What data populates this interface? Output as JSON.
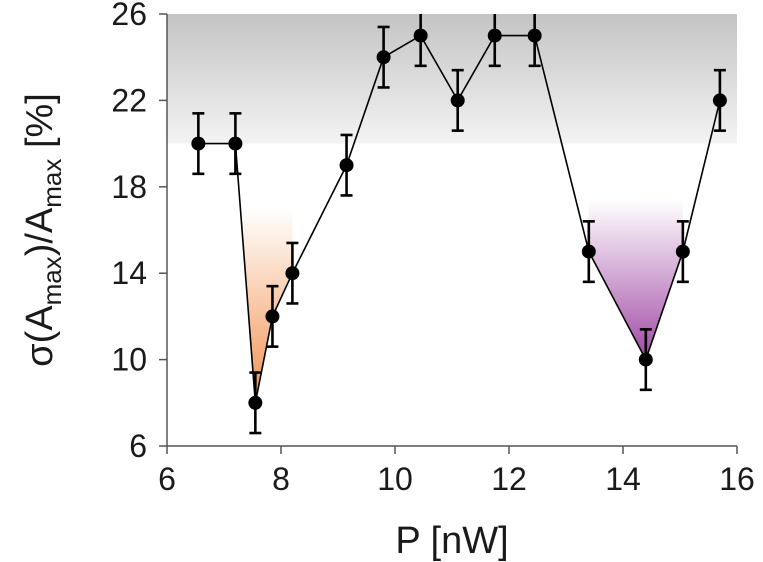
{
  "chart_data": {
    "type": "scatter",
    "title": "",
    "xlabel": "P [nW]",
    "ylabel": {
      "parts": [
        "σ(A",
        "max",
        ")/A",
        "max",
        " [%]"
      ]
    },
    "xlim": [
      6,
      16
    ],
    "ylim": [
      6,
      26
    ],
    "xticks": [
      6,
      8,
      10,
      12,
      14,
      16
    ],
    "yticks": [
      6,
      10,
      14,
      18,
      22,
      26
    ],
    "grid": false,
    "legend": "none",
    "line_color": "#000000",
    "marker_color": "#000000",
    "series": [
      {
        "x": [
          6.55,
          7.2,
          7.55,
          7.85,
          8.2,
          9.15,
          9.8,
          10.45,
          11.1,
          11.75,
          12.45,
          13.4,
          14.4,
          15.05,
          15.7
        ],
        "y": [
          20,
          20,
          8,
          12,
          14,
          19,
          24,
          25,
          22,
          25,
          25,
          15,
          10,
          15,
          22
        ],
        "err": [
          1.4,
          1.4,
          1.4,
          1.4,
          1.4,
          1.4,
          1.4,
          1.4,
          1.4,
          1.4,
          1.4,
          1.4,
          1.4,
          1.4,
          1.4
        ]
      }
    ],
    "shaded_regions": [
      {
        "name": "upper-band",
        "y_range": [
          20,
          26
        ],
        "color": "#c8c8c8"
      },
      {
        "name": "left-valley",
        "x_range": [
          7.2,
          8.2
        ],
        "y_top": 17,
        "color": "#f2914f"
      },
      {
        "name": "right-valley",
        "x_range": [
          13.4,
          15.05
        ],
        "y_top": 17.4,
        "color": "#9b3fa0"
      }
    ]
  }
}
